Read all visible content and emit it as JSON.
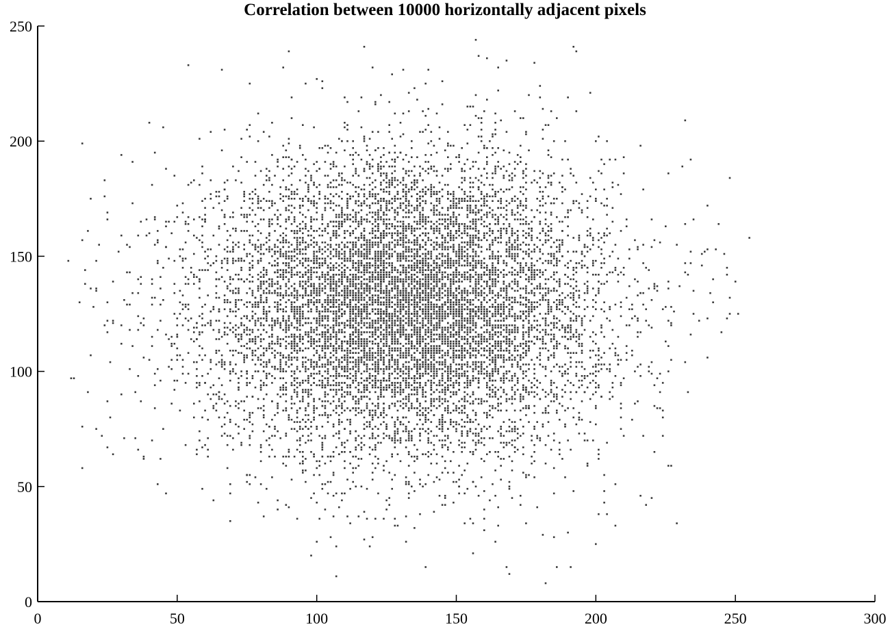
{
  "chart_data": {
    "type": "scatter",
    "title": "Correlation between 10000 horizontally adjacent pixels",
    "xlabel": "",
    "ylabel": "",
    "xlim": [
      0,
      300
    ],
    "ylim": [
      0,
      250
    ],
    "x_ticks": [
      0,
      50,
      100,
      150,
      200,
      250,
      300
    ],
    "y_ticks": [
      0,
      50,
      100,
      150,
      200,
      250
    ],
    "grid": false,
    "marker_color": "#3a3a3a",
    "series": [
      {
        "points_count": 10000,
        "distribution": {
          "mean_x": 132,
          "mean_y": 128,
          "std_x": 36,
          "std_y": 33,
          "x_range": [
            11,
            255
          ],
          "y_range": [
            8,
            244
          ]
        },
        "outliers": [
          [
            11,
            148
          ],
          [
            13,
            97
          ],
          [
            16,
            157
          ],
          [
            18,
            91
          ],
          [
            21,
            148
          ],
          [
            22,
            155
          ],
          [
            25,
            166
          ],
          [
            25,
            122
          ],
          [
            25,
            87
          ],
          [
            26,
            80
          ],
          [
            29,
            152
          ],
          [
            30,
            90
          ],
          [
            31,
            71
          ],
          [
            32,
            155
          ],
          [
            36,
            66
          ],
          [
            38,
            62
          ],
          [
            240,
            153
          ],
          [
            248,
            125
          ],
          [
            255,
            158
          ],
          [
            229,
            155
          ],
          [
            227,
            105
          ],
          [
            233,
            142
          ],
          [
            182,
            8
          ],
          [
            186,
            15
          ],
          [
            185,
            28
          ],
          [
            117,
            241
          ],
          [
            157,
            244
          ],
          [
            193,
            239
          ],
          [
            120,
            232
          ],
          [
            66,
            231
          ],
          [
            140,
            231
          ],
          [
            168,
            235
          ],
          [
            178,
            234
          ],
          [
            69,
            35
          ],
          [
            218,
            42
          ],
          [
            203,
            43
          ],
          [
            224,
            95
          ],
          [
            222,
            84
          ]
        ]
      }
    ]
  }
}
